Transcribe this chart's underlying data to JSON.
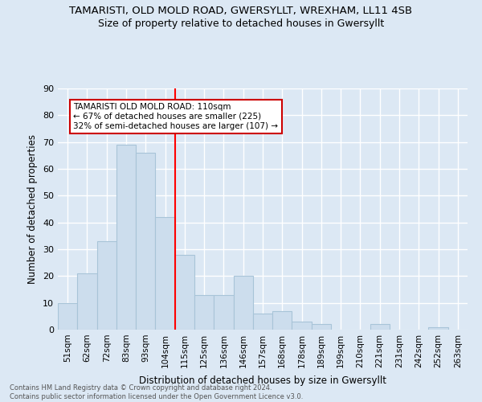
{
  "title": "TAMARISTI, OLD MOLD ROAD, GWERSYLLT, WREXHAM, LL11 4SB",
  "subtitle": "Size of property relative to detached houses in Gwersyllt",
  "xlabel": "Distribution of detached houses by size in Gwersyllt",
  "ylabel": "Number of detached properties",
  "footer": "Contains HM Land Registry data © Crown copyright and database right 2024.\nContains public sector information licensed under the Open Government Licence v3.0.",
  "bin_labels": [
    "51sqm",
    "62sqm",
    "72sqm",
    "83sqm",
    "93sqm",
    "104sqm",
    "115sqm",
    "125sqm",
    "136sqm",
    "146sqm",
    "157sqm",
    "168sqm",
    "178sqm",
    "189sqm",
    "199sqm",
    "210sqm",
    "221sqm",
    "231sqm",
    "242sqm",
    "252sqm",
    "263sqm"
  ],
  "values": [
    10,
    21,
    33,
    69,
    66,
    42,
    28,
    13,
    13,
    20,
    6,
    7,
    3,
    2,
    0,
    0,
    2,
    0,
    0,
    1,
    0
  ],
  "bar_color": "#ccdded",
  "bar_edge_color": "#a8c4d8",
  "background_color": "#dce8f4",
  "grid_color": "#ffffff",
  "red_line_x": 5.5,
  "annotation_text": "TAMARISTI OLD MOLD ROAD: 110sqm\n← 67% of detached houses are smaller (225)\n32% of semi-detached houses are larger (107) →",
  "annotation_box_color": "#ffffff",
  "annotation_box_edge": "#cc0000",
  "ylim": [
    0,
    90
  ],
  "yticks": [
    0,
    10,
    20,
    30,
    40,
    50,
    60,
    70,
    80,
    90
  ]
}
